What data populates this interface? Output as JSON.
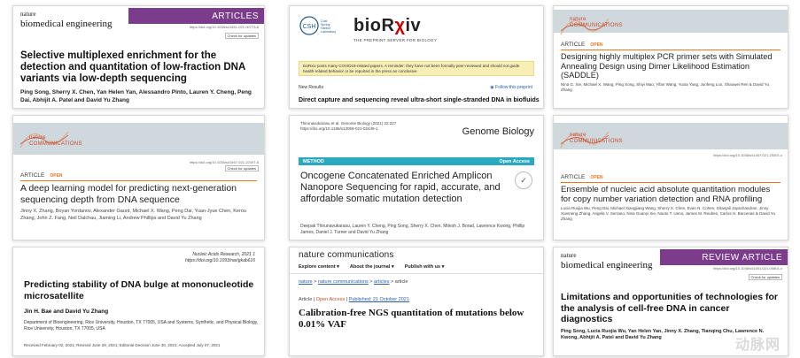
{
  "cards": {
    "c1": {
      "journal_small": "nature",
      "journal": "biomedical engineering",
      "type": "ARTICLES",
      "doi": "https://doi.org/10.1038/s41551-021-00773-8",
      "update": "Check for updates",
      "title": "Selective multiplexed enrichment for the detection and quantitation of low-fraction DNA variants via low-depth sequencing",
      "authors": "Ping Song, Sherry X. Chen, Yan Helen Yan, Alessandro Pinto, Lauren Y. Cheng, Peng Dai, Abhijit A. Patel and David Yu Zhang"
    },
    "c2": {
      "csh": "CSH",
      "csh_text": "Cold Spring Harbor Laboratory",
      "logo_main": "bioR",
      "logo_x": "χ",
      "logo_end": "iv",
      "subtitle": "THE PREPRINT SERVER FOR BIOLOGY",
      "notice": "bioRxiv posts many COVID19-related papers. A reminder: they have not been formally peer-reviewed and should not guide health-related behavior or be reported in the press as conclusive.",
      "section": "New Results",
      "follow": "Follow this preprint",
      "title": "Direct capture and sequencing reveal ultra-short single-stranded DNA in biofluids"
    },
    "c3": {
      "journal_small": "nature",
      "journal": "COMMUNICATIONS",
      "article": "ARTICLE",
      "open": "OPEN",
      "title": "Designing highly multiplex PCR primer sets with Simulated Annealing Design using Dimer Likelihood Estimation (SADDLE)",
      "authors": "Nina G. Xie, Michael X. Wang, Ping Song, Shiyi Mao, Yifan Wang, Yuxia Yang, Junfeng Luo, Shaowei Ren & David Yu Zhang"
    },
    "c4": {
      "journal_small": "nature",
      "journal": "COMMUNICATIONS",
      "doi": "https://doi.org/10.1038/s41467-021-22497-6",
      "update": "Check for updates",
      "article": "ARTICLE",
      "open": "OPEN",
      "title": "A deep learning model for predicting next-generation sequencing depth from DNA sequence",
      "authors": "Jinny X. Zhang, Boyan Yordanov, Alexander Gaunt, Michael X. Wang, Peng Dai, Yuan-Jyue Chen, Kerou Zhang, John Z. Fang, Neil Dalchau, Jiaming Li, Andrew Phillips and David Yu Zhang"
    },
    "c5": {
      "meta": "Thirunavukarasu et al. Genome Biology (2021) 22:227 https://doi.org/10.1186/s13059-021-02449-1",
      "journal": "Genome Biology",
      "method": "METHOD",
      "open": "Open Access",
      "title": "Oncogene Concatenated Enriched Amplicon Nanopore Sequencing for rapid, accurate, and affordable somatic mutation detection",
      "authors": "Deepak Thirunavukarasu, Lauren Y. Cheng, Ping Song, Sherry X. Chen, Mitesh J. Borad, Lawrence Kwong, Phillip James, Daniel J. Turner and David Yu Zhang"
    },
    "c6": {
      "journal_small": "nature",
      "journal": "COMMUNICATIONS",
      "doi": "https://doi.org/10.1038/s41467-021-25001-x",
      "article": "ARTICLE",
      "open": "OPEN",
      "title": "Ensemble of nucleic acid absolute quantitation modules for copy number variation detection and RNA profiling",
      "authors": "Lucia Ruojia Wu, Peng Dai, Michael Xiangjiang Wang, Sherry X. Chen, Evan N. Cohen, Gitanjali Jayachandran, Jinny Xuemeng Zhang, Angela V. Serrano, Nina Guanyi Xie, Naoto T. Ueno, James M. Reuben, Carlos H. Barcenas & David Yu Zhang"
    },
    "c7": {
      "meta1": "Nucleic Acids Research, 2021 1",
      "meta2": "https://doi.org/10.1093/nar/gkab616",
      "title": "Predicting stability of DNA bulge at mononucleotide microsatellite",
      "authors": "Jin H. Bae and David Yu Zhang",
      "affil": "Department of Bioengineering, Rice University, Houston, TX 77005, USA and Systems, Synthetic, and Physical Biology, Rice University, Houston, TX 77005, USA",
      "received": "Received February 02, 2021; Revised June 28, 2021; Editorial Decision June 30, 2021; Accepted July 07, 2021"
    },
    "c8": {
      "journal": "nature communications",
      "nav1": "Explore content",
      "nav2": "About the journal",
      "nav3": "Publish with us",
      "crumb1": "nature",
      "crumb2": "nature communications",
      "crumb3": "articles",
      "crumb4": "article",
      "meta_article": "Article",
      "meta_open": "Open Access",
      "meta_pub": "Published: 21 October 2021",
      "title": "Calibration-free NGS quantitation of mutations below 0.01% VAF"
    },
    "c9": {
      "journal_small": "nature",
      "journal": "biomedical engineering",
      "type": "REVIEW ARTICLE",
      "doi": "https://doi.org/10.1038/s41551-021-00801-x",
      "update": "Check for updates",
      "title": "Limitations and opportunities of technologies for the analysis of cell-free DNA in cancer diagnostics",
      "authors": "Ping Song, Lucia Ruojia Wu, Yan Helen Yan, Jinny X. Zhang, Tianqing Chu, Lawrence N. Kwong, Abhijit A. Patel and David Yu Zhang"
    }
  },
  "watermark": "动脉网"
}
